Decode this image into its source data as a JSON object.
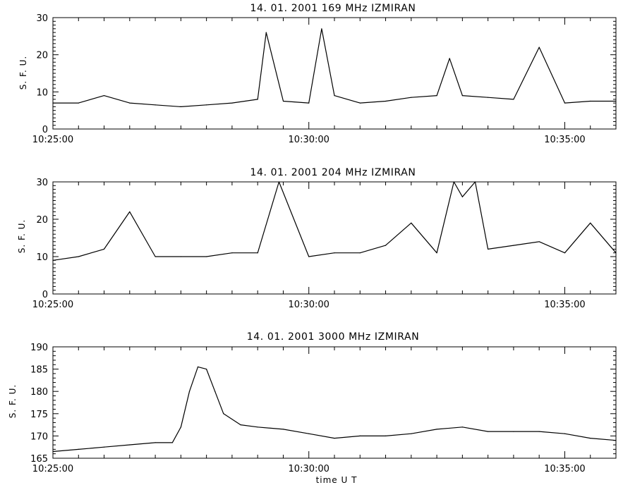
{
  "chart_data": [
    {
      "type": "line",
      "title": "14. 01. 2001   169 MHz   IZMIRAN",
      "ylabel": "S. F. U.",
      "xlabel": "",
      "xlim": [
        "10:25:00",
        "10:36:00"
      ],
      "ylim": [
        0,
        30
      ],
      "yticks": [
        0,
        10,
        20,
        30
      ],
      "xticks": [
        "10:25:00",
        "10:30:00",
        "10:35:00"
      ],
      "series": [
        {
          "x": [
            "10:25:00",
            "10:25:30",
            "10:26:00",
            "10:26:30",
            "10:27:00",
            "10:27:30",
            "10:28:00",
            "10:28:30",
            "10:29:00",
            "10:29:10",
            "10:29:30",
            "10:30:00",
            "10:30:15",
            "10:30:30",
            "10:31:00",
            "10:31:30",
            "10:32:00",
            "10:32:30",
            "10:32:45",
            "10:33:00",
            "10:33:30",
            "10:34:00",
            "10:34:30",
            "10:35:00",
            "10:35:30",
            "10:36:00"
          ],
          "values": [
            7,
            7,
            9,
            7,
            6.5,
            6,
            6.5,
            7,
            8,
            26,
            7.5,
            7,
            27,
            9,
            7,
            7.5,
            8.5,
            9,
            19,
            9,
            8.5,
            8,
            22,
            7,
            7.5,
            7.5
          ]
        }
      ]
    },
    {
      "type": "line",
      "title": "14. 01. 2001   204 MHz   IZMIRAN",
      "ylabel": "S. F. U.",
      "xlabel": "",
      "xlim": [
        "10:25:00",
        "10:36:00"
      ],
      "ylim": [
        0,
        30
      ],
      "yticks": [
        0,
        10,
        20,
        30
      ],
      "xticks": [
        "10:25:00",
        "10:30:00",
        "10:35:00"
      ],
      "series": [
        {
          "x": [
            "10:25:00",
            "10:25:30",
            "10:26:00",
            "10:26:30",
            "10:27:00",
            "10:27:30",
            "10:28:00",
            "10:28:30",
            "10:29:00",
            "10:29:25",
            "10:30:00",
            "10:30:30",
            "10:31:00",
            "10:31:30",
            "10:32:00",
            "10:32:30",
            "10:32:50",
            "10:33:00",
            "10:33:15",
            "10:33:30",
            "10:34:00",
            "10:34:30",
            "10:35:00",
            "10:35:30",
            "10:36:00"
          ],
          "values": [
            9,
            10,
            12,
            22,
            10,
            10,
            10,
            11,
            11,
            30,
            10,
            11,
            11,
            13,
            19,
            11,
            30,
            26,
            30,
            12,
            13,
            14,
            11,
            19,
            11
          ]
        }
      ]
    },
    {
      "type": "line",
      "title": "14. 01. 2001   3000 MHz   IZMIRAN",
      "ylabel": "S. F. U.",
      "xlabel": "time   U T",
      "xlim": [
        "10:25:00",
        "10:36:00"
      ],
      "ylim": [
        165,
        190
      ],
      "yticks": [
        165,
        170,
        175,
        180,
        185,
        190
      ],
      "xticks": [
        "10:25:00",
        "10:30:00",
        "10:35:00"
      ],
      "series": [
        {
          "x": [
            "10:25:00",
            "10:25:30",
            "10:26:00",
            "10:26:30",
            "10:27:00",
            "10:27:20",
            "10:27:30",
            "10:27:40",
            "10:27:50",
            "10:28:00",
            "10:28:10",
            "10:28:20",
            "10:28:40",
            "10:29:00",
            "10:29:30",
            "10:30:00",
            "10:30:30",
            "10:31:00",
            "10:31:30",
            "10:32:00",
            "10:32:30",
            "10:33:00",
            "10:33:30",
            "10:34:00",
            "10:34:30",
            "10:35:00",
            "10:35:30",
            "10:36:00"
          ],
          "values": [
            166.5,
            167,
            167.5,
            168,
            168.5,
            168.5,
            172,
            180,
            185.5,
            185,
            180,
            175,
            172.5,
            172,
            171.5,
            170.5,
            169.5,
            170,
            170,
            170.5,
            171.5,
            172,
            171,
            171,
            171,
            170.5,
            169.5,
            169
          ]
        }
      ]
    }
  ]
}
